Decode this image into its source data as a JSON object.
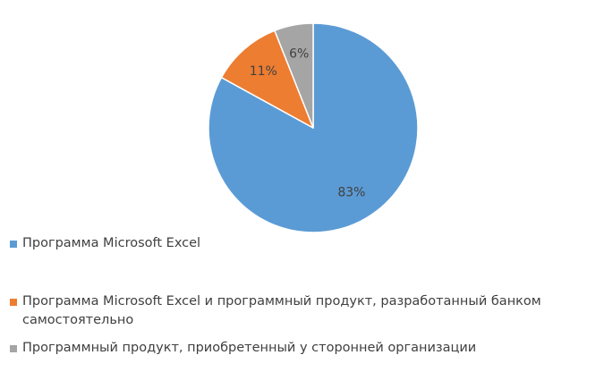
{
  "chart_data": {
    "type": "pie",
    "title": "",
    "slices": [
      {
        "label": "Программа Microsoft Excel",
        "value": 83,
        "value_label": "83%",
        "color": "#5b9bd5"
      },
      {
        "label": "Программа Microsoft Excel и программный продукт, разработанный банком самостоятельно",
        "value": 11,
        "value_label": "11%",
        "color": "#ed7d31"
      },
      {
        "label": "Программный продукт, приобретенный у сторонней организации",
        "value": 6,
        "value_label": "6%",
        "color": "#a5a5a5"
      }
    ],
    "legend_placement": "bottom-left"
  }
}
